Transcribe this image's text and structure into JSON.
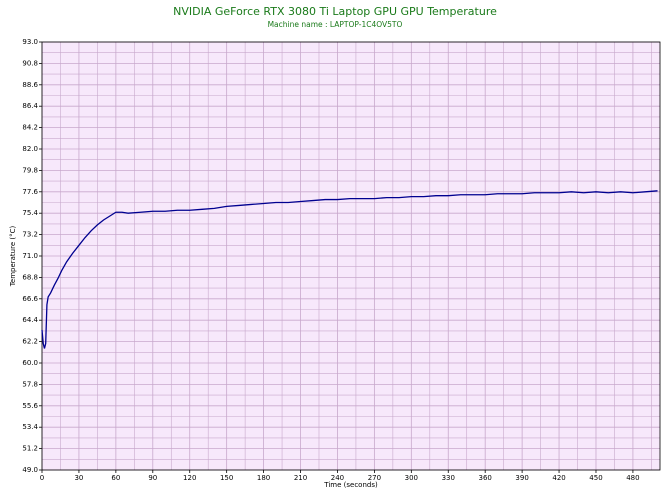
{
  "chart_data": {
    "type": "line",
    "title": "NVIDIA GeForce RTX 3080 Ti Laptop GPU GPU Temperature",
    "subtitle": "Machine name : LAPTOP-1C4OV5TO",
    "x_label": "Time (seconds)",
    "y_label": "Temperature (°C)",
    "xlim": [
      0,
      502
    ],
    "xticks": [
      0,
      30,
      60,
      90,
      120,
      150,
      180,
      210,
      240,
      270,
      300,
      330,
      360,
      390,
      420,
      450,
      480
    ],
    "ylim": [
      49,
      93
    ],
    "yticks": [
      {
        "value": 49,
        "label": "49.0"
      },
      51.2,
      53.4,
      55.6,
      57.8,
      {
        "value": 60,
        "label": "60.0"
      },
      62.2,
      64.4,
      66.6,
      68.8,
      {
        "value": 71,
        "label": "71.0"
      },
      73.2,
      75.4,
      77.6,
      79.8,
      {
        "value": 82,
        "label": "82.0"
      },
      84.2,
      86.4,
      88.6,
      90.8,
      {
        "value": 93,
        "label": "93.0"
      }
    ],
    "grid": true,
    "background": "#f7e8fb",
    "grid_color": "#c8a8cc",
    "series": [
      {
        "name": "GPU Temperature",
        "color": "#000090",
        "x": [
          0,
          1,
          2,
          3,
          4,
          5,
          7,
          10,
          13,
          16,
          20,
          25,
          30,
          35,
          40,
          45,
          50,
          55,
          60,
          65,
          70,
          80,
          90,
          100,
          110,
          120,
          130,
          140,
          150,
          160,
          170,
          180,
          190,
          200,
          210,
          220,
          230,
          240,
          250,
          260,
          270,
          280,
          290,
          300,
          310,
          320,
          330,
          340,
          350,
          360,
          370,
          380,
          390,
          400,
          410,
          420,
          430,
          440,
          450,
          460,
          470,
          480,
          490,
          500
        ],
        "values": [
          63.4,
          62.0,
          61.5,
          62.0,
          66.0,
          66.8,
          67.2,
          68.0,
          68.7,
          69.5,
          70.4,
          71.3,
          72.1,
          72.9,
          73.6,
          74.2,
          74.7,
          75.1,
          75.5,
          75.5,
          75.4,
          75.5,
          75.6,
          75.6,
          75.7,
          75.7,
          75.8,
          75.9,
          76.1,
          76.2,
          76.3,
          76.4,
          76.5,
          76.5,
          76.6,
          76.7,
          76.8,
          76.8,
          76.9,
          76.9,
          76.9,
          77.0,
          77.0,
          77.1,
          77.1,
          77.2,
          77.2,
          77.3,
          77.3,
          77.3,
          77.4,
          77.4,
          77.4,
          77.5,
          77.5,
          77.5,
          77.6,
          77.5,
          77.6,
          77.5,
          77.6,
          77.5,
          77.6,
          77.7
        ]
      }
    ]
  }
}
